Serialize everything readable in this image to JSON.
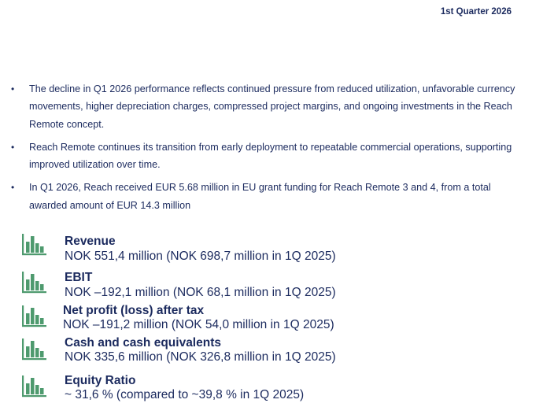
{
  "header": {
    "period": "1st Quarter 2026"
  },
  "bullets": [
    "The decline in Q1 2026 performance reflects continued pressure from reduced utilization, unfavorable currency movements, higher depreciation charges, compressed project margins, and ongoing investments in the Reach Remote concept.",
    "Reach Remote continues its transition from early deployment to repeatable commercial operations, supporting improved utilization over time.",
    "In Q1 2026, Reach received EUR 5.68 million in EU grant funding for Reach Remote 3 and 4, from a total awarded amount of EUR 14.3 million"
  ],
  "bullet_marker": "•",
  "icon": {
    "name": "bar-chart-icon",
    "color": "#4e9a6e"
  },
  "metrics": [
    {
      "title": "Revenue",
      "value": "NOK 551,4 million (NOK 698,7 million in 1Q 2025)"
    },
    {
      "title": "EBIT",
      "value": "NOK –192,1 million (NOK 68,1 million in 1Q 2025)"
    },
    {
      "title": "Net profit (loss) after tax",
      "value": "NOK –191,2 million (NOK 54,0 million in 1Q 2025)"
    },
    {
      "title": "Cash and cash equivalents",
      "value": "NOK 335,6 million (NOK 326,8 million in 1Q 2025)"
    },
    {
      "title": "Equity Ratio",
      "value": "~ 31,6 % (compared to ~39,8 % in 1Q 2025)"
    }
  ],
  "colors": {
    "text": "#1b2a5e",
    "accent": "#4e9a6e"
  }
}
